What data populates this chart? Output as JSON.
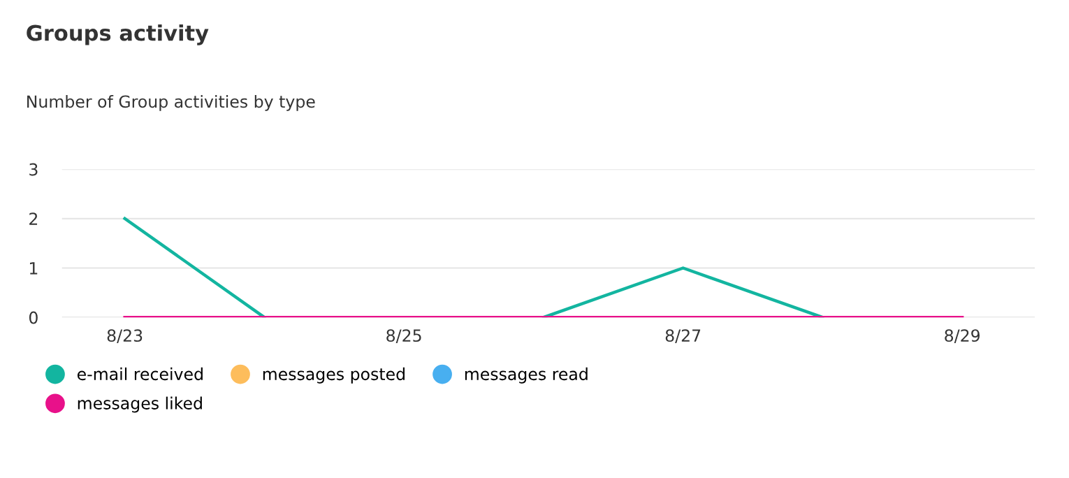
{
  "chart_data": {
    "type": "line",
    "title": "Groups activity",
    "subtitle": "Number of Group activities by type",
    "categories": [
      "8/23",
      null,
      "8/25",
      null,
      "8/27",
      null,
      "8/29"
    ],
    "series": [
      {
        "name": "e-mail received",
        "color": "#13b5a0",
        "values": [
          2,
          0,
          null,
          0,
          1,
          0,
          null
        ]
      },
      {
        "name": "messages posted",
        "color": "#fdbd5c",
        "values": [
          null,
          null,
          null,
          null,
          null,
          null,
          null
        ]
      },
      {
        "name": "messages read",
        "color": "#48aff0",
        "values": [
          null,
          null,
          null,
          null,
          null,
          null,
          null
        ]
      },
      {
        "name": "messages liked",
        "color": "#e8118a",
        "values": [
          0,
          0,
          0,
          0,
          0,
          0,
          0
        ]
      }
    ],
    "ylim": [
      0,
      3
    ],
    "yticks": [
      0,
      1,
      2,
      3
    ],
    "grid": "y",
    "legend": "bottom",
    "marker": "none",
    "line_style": "solid"
  }
}
